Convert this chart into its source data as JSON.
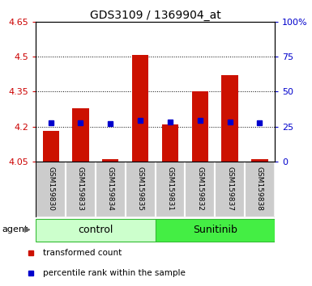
{
  "title": "GDS3109 / 1369904_at",
  "samples": [
    "GSM159830",
    "GSM159833",
    "GSM159834",
    "GSM159835",
    "GSM159831",
    "GSM159832",
    "GSM159837",
    "GSM159838"
  ],
  "red_values": [
    4.18,
    4.28,
    4.06,
    4.505,
    4.21,
    4.35,
    4.42,
    4.06
  ],
  "blue_values": [
    4.215,
    4.215,
    4.213,
    4.225,
    4.218,
    4.225,
    4.22,
    4.215
  ],
  "red_base": 4.05,
  "ylim_left": [
    4.05,
    4.65
  ],
  "ylim_right": [
    0,
    100
  ],
  "yticks_left": [
    4.05,
    4.2,
    4.35,
    4.5,
    4.65
  ],
  "ytick_labels_left": [
    "4.05",
    "4.2",
    "4.35",
    "4.5",
    "4.65"
  ],
  "yticks_right": [
    0,
    25,
    50,
    75,
    100
  ],
  "ytick_labels_right": [
    "0",
    "25",
    "50",
    "75",
    "100%"
  ],
  "groups": [
    {
      "label": "control",
      "indices": [
        0,
        1,
        2,
        3
      ],
      "color": "#ccffcc",
      "border": "#33bb33"
    },
    {
      "label": "Sunitinib",
      "indices": [
        4,
        5,
        6,
        7
      ],
      "color": "#44ee44",
      "border": "#33bb33"
    }
  ],
  "red_color": "#cc1100",
  "blue_color": "#0000cc",
  "bar_width": 0.55,
  "blue_marker_size": 5,
  "agent_label": "agent",
  "legend_red": "transformed count",
  "legend_blue": "percentile rank within the sample",
  "plot_bg": "#ffffff",
  "sample_label_bg": "#cccccc",
  "left_tick_color": "#cc0000",
  "right_tick_color": "#0000cc",
  "grid_yticks": [
    4.2,
    4.35,
    4.5
  ]
}
